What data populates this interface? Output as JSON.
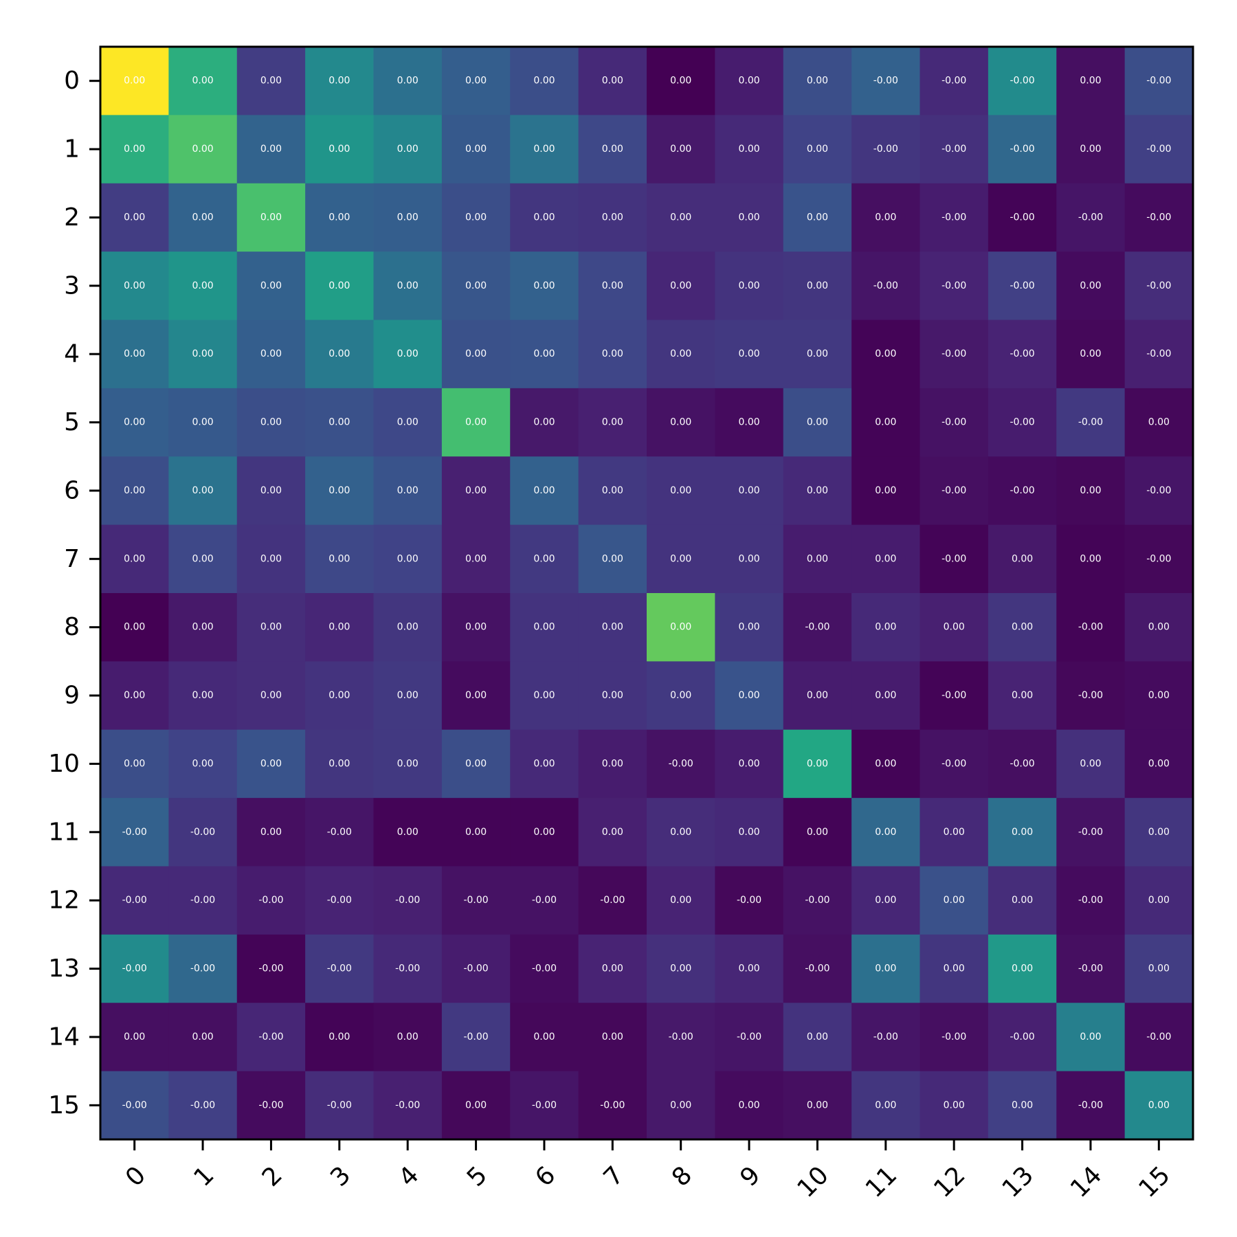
{
  "chart_data": {
    "type": "heatmap",
    "colormap": "viridis",
    "title": "",
    "xlabel": "",
    "ylabel": "",
    "x_tick_labels": [
      "0",
      "1",
      "2",
      "3",
      "4",
      "5",
      "6",
      "7",
      "8",
      "9",
      "10",
      "11",
      "12",
      "13",
      "14",
      "15"
    ],
    "y_tick_labels": [
      "0",
      "1",
      "2",
      "3",
      "4",
      "5",
      "6",
      "7",
      "8",
      "9",
      "10",
      "11",
      "12",
      "13",
      "14",
      "15"
    ],
    "x_tick_rotation_deg": 45,
    "colorbar": false,
    "grid": false,
    "intensity": [
      [
        1.0,
        0.63,
        0.18,
        0.47,
        0.37,
        0.3,
        0.24,
        0.12,
        0.0,
        0.08,
        0.24,
        0.31,
        0.12,
        0.48,
        0.04,
        0.24
      ],
      [
        0.63,
        0.72,
        0.32,
        0.52,
        0.46,
        0.28,
        0.38,
        0.22,
        0.07,
        0.12,
        0.2,
        0.16,
        0.14,
        0.34,
        0.04,
        0.19
      ],
      [
        0.18,
        0.32,
        0.71,
        0.31,
        0.3,
        0.24,
        0.16,
        0.15,
        0.13,
        0.13,
        0.26,
        0.04,
        0.08,
        0.01,
        0.06,
        0.03
      ],
      [
        0.47,
        0.52,
        0.31,
        0.56,
        0.37,
        0.27,
        0.31,
        0.22,
        0.11,
        0.15,
        0.16,
        0.06,
        0.1,
        0.19,
        0.03,
        0.13
      ],
      [
        0.37,
        0.46,
        0.3,
        0.41,
        0.49,
        0.25,
        0.26,
        0.21,
        0.16,
        0.17,
        0.17,
        0.01,
        0.07,
        0.1,
        0.02,
        0.09
      ],
      [
        0.3,
        0.28,
        0.24,
        0.25,
        0.22,
        0.7,
        0.07,
        0.09,
        0.05,
        0.03,
        0.24,
        0.01,
        0.05,
        0.08,
        0.17,
        0.02
      ],
      [
        0.24,
        0.38,
        0.16,
        0.31,
        0.26,
        0.09,
        0.31,
        0.17,
        0.15,
        0.15,
        0.12,
        0.01,
        0.04,
        0.03,
        0.02,
        0.06
      ],
      [
        0.12,
        0.22,
        0.15,
        0.22,
        0.2,
        0.09,
        0.17,
        0.27,
        0.15,
        0.15,
        0.08,
        0.08,
        0.01,
        0.07,
        0.01,
        0.02
      ],
      [
        0.0,
        0.07,
        0.13,
        0.11,
        0.16,
        0.05,
        0.15,
        0.15,
        0.76,
        0.17,
        0.05,
        0.12,
        0.09,
        0.16,
        0.01,
        0.07
      ],
      [
        0.08,
        0.12,
        0.13,
        0.15,
        0.17,
        0.03,
        0.15,
        0.15,
        0.17,
        0.26,
        0.08,
        0.08,
        0.01,
        0.1,
        0.02,
        0.03
      ],
      [
        0.24,
        0.2,
        0.26,
        0.16,
        0.17,
        0.24,
        0.12,
        0.08,
        0.05,
        0.08,
        0.6,
        0.01,
        0.05,
        0.04,
        0.14,
        0.03
      ],
      [
        0.31,
        0.16,
        0.04,
        0.06,
        0.01,
        0.01,
        0.01,
        0.09,
        0.13,
        0.12,
        0.01,
        0.34,
        0.12,
        0.37,
        0.05,
        0.16
      ],
      [
        0.12,
        0.12,
        0.08,
        0.1,
        0.09,
        0.05,
        0.05,
        0.02,
        0.1,
        0.02,
        0.05,
        0.11,
        0.25,
        0.13,
        0.03,
        0.12
      ],
      [
        0.48,
        0.34,
        0.01,
        0.17,
        0.12,
        0.08,
        0.03,
        0.1,
        0.14,
        0.11,
        0.04,
        0.37,
        0.16,
        0.54,
        0.04,
        0.18
      ],
      [
        0.04,
        0.04,
        0.11,
        0.01,
        0.02,
        0.17,
        0.02,
        0.02,
        0.07,
        0.06,
        0.15,
        0.06,
        0.04,
        0.09,
        0.43,
        0.03
      ],
      [
        0.24,
        0.19,
        0.03,
        0.13,
        0.09,
        0.02,
        0.06,
        0.02,
        0.07,
        0.03,
        0.04,
        0.16,
        0.12,
        0.19,
        0.03,
        0.47
      ]
    ],
    "cell_labels": [
      [
        "0.00",
        "0.00",
        "0.00",
        "0.00",
        "0.00",
        "0.00",
        "0.00",
        "0.00",
        "0.00",
        "0.00",
        "0.00",
        "-0.00",
        "-0.00",
        "-0.00",
        "0.00",
        "-0.00"
      ],
      [
        "0.00",
        "0.00",
        "0.00",
        "0.00",
        "0.00",
        "0.00",
        "0.00",
        "0.00",
        "0.00",
        "0.00",
        "0.00",
        "-0.00",
        "-0.00",
        "-0.00",
        "0.00",
        "-0.00"
      ],
      [
        "0.00",
        "0.00",
        "0.00",
        "0.00",
        "0.00",
        "0.00",
        "0.00",
        "0.00",
        "0.00",
        "0.00",
        "0.00",
        "0.00",
        "-0.00",
        "-0.00",
        "-0.00",
        "-0.00"
      ],
      [
        "0.00",
        "0.00",
        "0.00",
        "0.00",
        "0.00",
        "0.00",
        "0.00",
        "0.00",
        "0.00",
        "0.00",
        "0.00",
        "-0.00",
        "-0.00",
        "-0.00",
        "0.00",
        "-0.00"
      ],
      [
        "0.00",
        "0.00",
        "0.00",
        "0.00",
        "0.00",
        "0.00",
        "0.00",
        "0.00",
        "0.00",
        "0.00",
        "0.00",
        "0.00",
        "-0.00",
        "-0.00",
        "0.00",
        "-0.00"
      ],
      [
        "0.00",
        "0.00",
        "0.00",
        "0.00",
        "0.00",
        "0.00",
        "0.00",
        "0.00",
        "0.00",
        "0.00",
        "0.00",
        "0.00",
        "-0.00",
        "-0.00",
        "-0.00",
        "0.00"
      ],
      [
        "0.00",
        "0.00",
        "0.00",
        "0.00",
        "0.00",
        "0.00",
        "0.00",
        "0.00",
        "0.00",
        "0.00",
        "0.00",
        "0.00",
        "-0.00",
        "-0.00",
        "0.00",
        "-0.00"
      ],
      [
        "0.00",
        "0.00",
        "0.00",
        "0.00",
        "0.00",
        "0.00",
        "0.00",
        "0.00",
        "0.00",
        "0.00",
        "0.00",
        "0.00",
        "-0.00",
        "0.00",
        "0.00",
        "-0.00"
      ],
      [
        "0.00",
        "0.00",
        "0.00",
        "0.00",
        "0.00",
        "0.00",
        "0.00",
        "0.00",
        "0.00",
        "0.00",
        "-0.00",
        "0.00",
        "0.00",
        "0.00",
        "-0.00",
        "0.00"
      ],
      [
        "0.00",
        "0.00",
        "0.00",
        "0.00",
        "0.00",
        "0.00",
        "0.00",
        "0.00",
        "0.00",
        "0.00",
        "0.00",
        "0.00",
        "-0.00",
        "0.00",
        "-0.00",
        "0.00"
      ],
      [
        "0.00",
        "0.00",
        "0.00",
        "0.00",
        "0.00",
        "0.00",
        "0.00",
        "0.00",
        "-0.00",
        "0.00",
        "0.00",
        "0.00",
        "-0.00",
        "-0.00",
        "0.00",
        "0.00"
      ],
      [
        "-0.00",
        "-0.00",
        "0.00",
        "-0.00",
        "0.00",
        "0.00",
        "0.00",
        "0.00",
        "0.00",
        "0.00",
        "0.00",
        "0.00",
        "0.00",
        "0.00",
        "-0.00",
        "0.00"
      ],
      [
        "-0.00",
        "-0.00",
        "-0.00",
        "-0.00",
        "-0.00",
        "-0.00",
        "-0.00",
        "-0.00",
        "0.00",
        "-0.00",
        "-0.00",
        "0.00",
        "0.00",
        "0.00",
        "-0.00",
        "0.00"
      ],
      [
        "-0.00",
        "-0.00",
        "-0.00",
        "-0.00",
        "-0.00",
        "-0.00",
        "-0.00",
        "0.00",
        "0.00",
        "0.00",
        "-0.00",
        "0.00",
        "0.00",
        "0.00",
        "-0.00",
        "0.00"
      ],
      [
        "0.00",
        "0.00",
        "-0.00",
        "0.00",
        "0.00",
        "-0.00",
        "0.00",
        "0.00",
        "-0.00",
        "-0.00",
        "0.00",
        "-0.00",
        "-0.00",
        "-0.00",
        "0.00",
        "-0.00"
      ],
      [
        "-0.00",
        "-0.00",
        "-0.00",
        "-0.00",
        "-0.00",
        "0.00",
        "-0.00",
        "-0.00",
        "0.00",
        "0.00",
        "0.00",
        "0.00",
        "0.00",
        "0.00",
        "-0.00",
        "0.00"
      ]
    ]
  }
}
